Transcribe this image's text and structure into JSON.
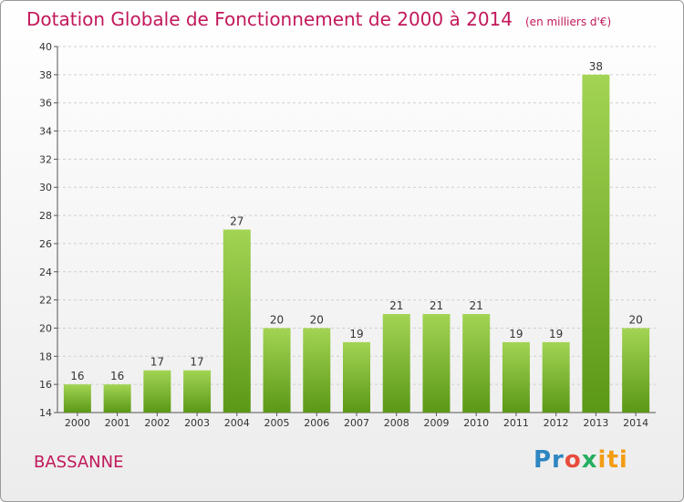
{
  "title": "Dotation Globale de Fonctionnement de 2000 à 2014",
  "unit": "(en milliers d'€)",
  "commune": "BASSANNE",
  "logo": {
    "text": "Proxiti",
    "p": "Pr",
    "o": "o",
    "x": "x",
    "i": "iti"
  },
  "colors": {
    "bar_light": "#9ccf4e",
    "bar_dark": "#5f9b16",
    "title": "#c2185b"
  },
  "chart_data": {
    "type": "bar",
    "categories": [
      "2000",
      "2001",
      "2002",
      "2003",
      "2004",
      "2005",
      "2006",
      "2007",
      "2008",
      "2009",
      "2010",
      "2011",
      "2012",
      "2013",
      "2014"
    ],
    "values": [
      16,
      16,
      17,
      17,
      27,
      20,
      20,
      19,
      21,
      21,
      21,
      19,
      19,
      38,
      20
    ],
    "ylim": [
      14,
      40
    ],
    "yticks": [
      14,
      16,
      18,
      20,
      22,
      24,
      26,
      28,
      30,
      32,
      34,
      36,
      38,
      40
    ],
    "grid": "horizontal dashed",
    "title": "Dotation Globale de Fonctionnement de 2000 à 2014",
    "xlabel": "",
    "ylabel": ""
  }
}
